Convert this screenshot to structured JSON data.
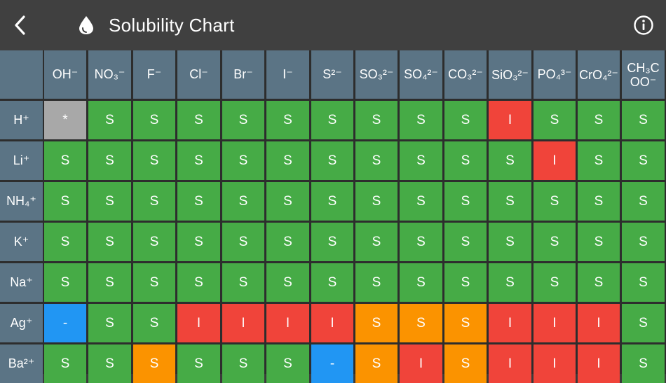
{
  "header": {
    "title": "Solubility Chart",
    "back_icon": "chevron-left-icon",
    "title_icon": "water-drop-icon",
    "info_icon": "info-circle-icon"
  },
  "colors": {
    "S": "#46ab46",
    "I": "#f0443a",
    "O": "#fb9300",
    "B": "#2196f3",
    "G": "#a8a8a8",
    "header_bg": "#5b7485",
    "topbar_bg": "#404040"
  },
  "anions": [
    {
      "label": "OH⁻",
      "wrap": false
    },
    {
      "label": "NO₃⁻",
      "wrap": false
    },
    {
      "label": "F⁻",
      "wrap": false
    },
    {
      "label": "Cl⁻",
      "wrap": false
    },
    {
      "label": "Br⁻",
      "wrap": false
    },
    {
      "label": "I⁻",
      "wrap": false
    },
    {
      "label": "S²⁻",
      "wrap": false
    },
    {
      "label": "SO₃²⁻",
      "wrap": false
    },
    {
      "label": "SO₄²⁻",
      "wrap": false
    },
    {
      "label": "CO₃²⁻",
      "wrap": false
    },
    {
      "label": "SiO₃²⁻",
      "wrap": true
    },
    {
      "label": "PO₄³⁻",
      "wrap": false
    },
    {
      "label": "CrO₄²⁻",
      "wrap": true
    },
    {
      "label": "CH₃COO⁻",
      "wrap": true
    }
  ],
  "rows": [
    {
      "cation": "H⁺",
      "cells": [
        [
          "*",
          "G"
        ],
        [
          "S",
          "S"
        ],
        [
          "S",
          "S"
        ],
        [
          "S",
          "S"
        ],
        [
          "S",
          "S"
        ],
        [
          "S",
          "S"
        ],
        [
          "S",
          "S"
        ],
        [
          "S",
          "S"
        ],
        [
          "S",
          "S"
        ],
        [
          "S",
          "S"
        ],
        [
          "I",
          "I"
        ],
        [
          "S",
          "S"
        ],
        [
          "S",
          "S"
        ],
        [
          "S",
          "S"
        ]
      ]
    },
    {
      "cation": "Li⁺",
      "cells": [
        [
          "S",
          "S"
        ],
        [
          "S",
          "S"
        ],
        [
          "S",
          "S"
        ],
        [
          "S",
          "S"
        ],
        [
          "S",
          "S"
        ],
        [
          "S",
          "S"
        ],
        [
          "S",
          "S"
        ],
        [
          "S",
          "S"
        ],
        [
          "S",
          "S"
        ],
        [
          "S",
          "S"
        ],
        [
          "S",
          "S"
        ],
        [
          "I",
          "I"
        ],
        [
          "S",
          "S"
        ],
        [
          "S",
          "S"
        ]
      ]
    },
    {
      "cation": "NH₄⁺",
      "cells": [
        [
          "S",
          "S"
        ],
        [
          "S",
          "S"
        ],
        [
          "S",
          "S"
        ],
        [
          "S",
          "S"
        ],
        [
          "S",
          "S"
        ],
        [
          "S",
          "S"
        ],
        [
          "S",
          "S"
        ],
        [
          "S",
          "S"
        ],
        [
          "S",
          "S"
        ],
        [
          "S",
          "S"
        ],
        [
          "S",
          "S"
        ],
        [
          "S",
          "S"
        ],
        [
          "S",
          "S"
        ],
        [
          "S",
          "S"
        ]
      ]
    },
    {
      "cation": "K⁺",
      "cells": [
        [
          "S",
          "S"
        ],
        [
          "S",
          "S"
        ],
        [
          "S",
          "S"
        ],
        [
          "S",
          "S"
        ],
        [
          "S",
          "S"
        ],
        [
          "S",
          "S"
        ],
        [
          "S",
          "S"
        ],
        [
          "S",
          "S"
        ],
        [
          "S",
          "S"
        ],
        [
          "S",
          "S"
        ],
        [
          "S",
          "S"
        ],
        [
          "S",
          "S"
        ],
        [
          "S",
          "S"
        ],
        [
          "S",
          "S"
        ]
      ]
    },
    {
      "cation": "Na⁺",
      "cells": [
        [
          "S",
          "S"
        ],
        [
          "S",
          "S"
        ],
        [
          "S",
          "S"
        ],
        [
          "S",
          "S"
        ],
        [
          "S",
          "S"
        ],
        [
          "S",
          "S"
        ],
        [
          "S",
          "S"
        ],
        [
          "S",
          "S"
        ],
        [
          "S",
          "S"
        ],
        [
          "S",
          "S"
        ],
        [
          "S",
          "S"
        ],
        [
          "S",
          "S"
        ],
        [
          "S",
          "S"
        ],
        [
          "S",
          "S"
        ]
      ]
    },
    {
      "cation": "Ag⁺",
      "cells": [
        [
          "-",
          "B"
        ],
        [
          "S",
          "S"
        ],
        [
          "S",
          "S"
        ],
        [
          "I",
          "I"
        ],
        [
          "I",
          "I"
        ],
        [
          "I",
          "I"
        ],
        [
          "I",
          "I"
        ],
        [
          "S",
          "O"
        ],
        [
          "S",
          "O"
        ],
        [
          "S",
          "O"
        ],
        [
          "I",
          "I"
        ],
        [
          "I",
          "I"
        ],
        [
          "I",
          "I"
        ],
        [
          "S",
          "S"
        ]
      ]
    },
    {
      "cation": "Ba²⁺",
      "cells": [
        [
          "S",
          "S"
        ],
        [
          "S",
          "S"
        ],
        [
          "S",
          "O"
        ],
        [
          "S",
          "S"
        ],
        [
          "S",
          "S"
        ],
        [
          "S",
          "S"
        ],
        [
          "-",
          "B"
        ],
        [
          "S",
          "O"
        ],
        [
          "I",
          "I"
        ],
        [
          "S",
          "O"
        ],
        [
          "I",
          "I"
        ],
        [
          "I",
          "I"
        ],
        [
          "I",
          "I"
        ],
        [
          "S",
          "S"
        ]
      ]
    }
  ]
}
